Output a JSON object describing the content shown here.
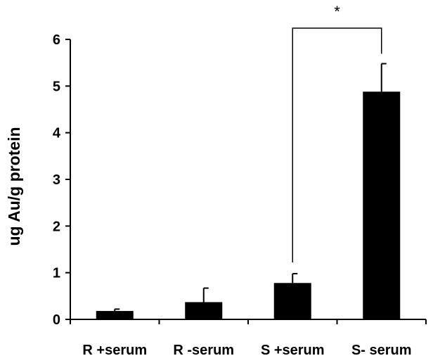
{
  "chart_data": {
    "type": "bar",
    "title": "",
    "xlabel": "",
    "ylabel": "ug Au/g protein",
    "categories": [
      "R +serum",
      "R -serum",
      "S +serum",
      "S- serum"
    ],
    "values": [
      0.18,
      0.37,
      0.78,
      4.88
    ],
    "error_upper": [
      0.04,
      0.3,
      0.2,
      0.6
    ],
    "ylim": [
      0,
      6
    ],
    "yticks": [
      "0",
      "1",
      "2",
      "3",
      "4",
      "5",
      "6"
    ],
    "grid": false,
    "bar_color": "#000000",
    "significance": {
      "from_category": "S +serum",
      "to_category": "S- serum",
      "label": "*"
    }
  }
}
